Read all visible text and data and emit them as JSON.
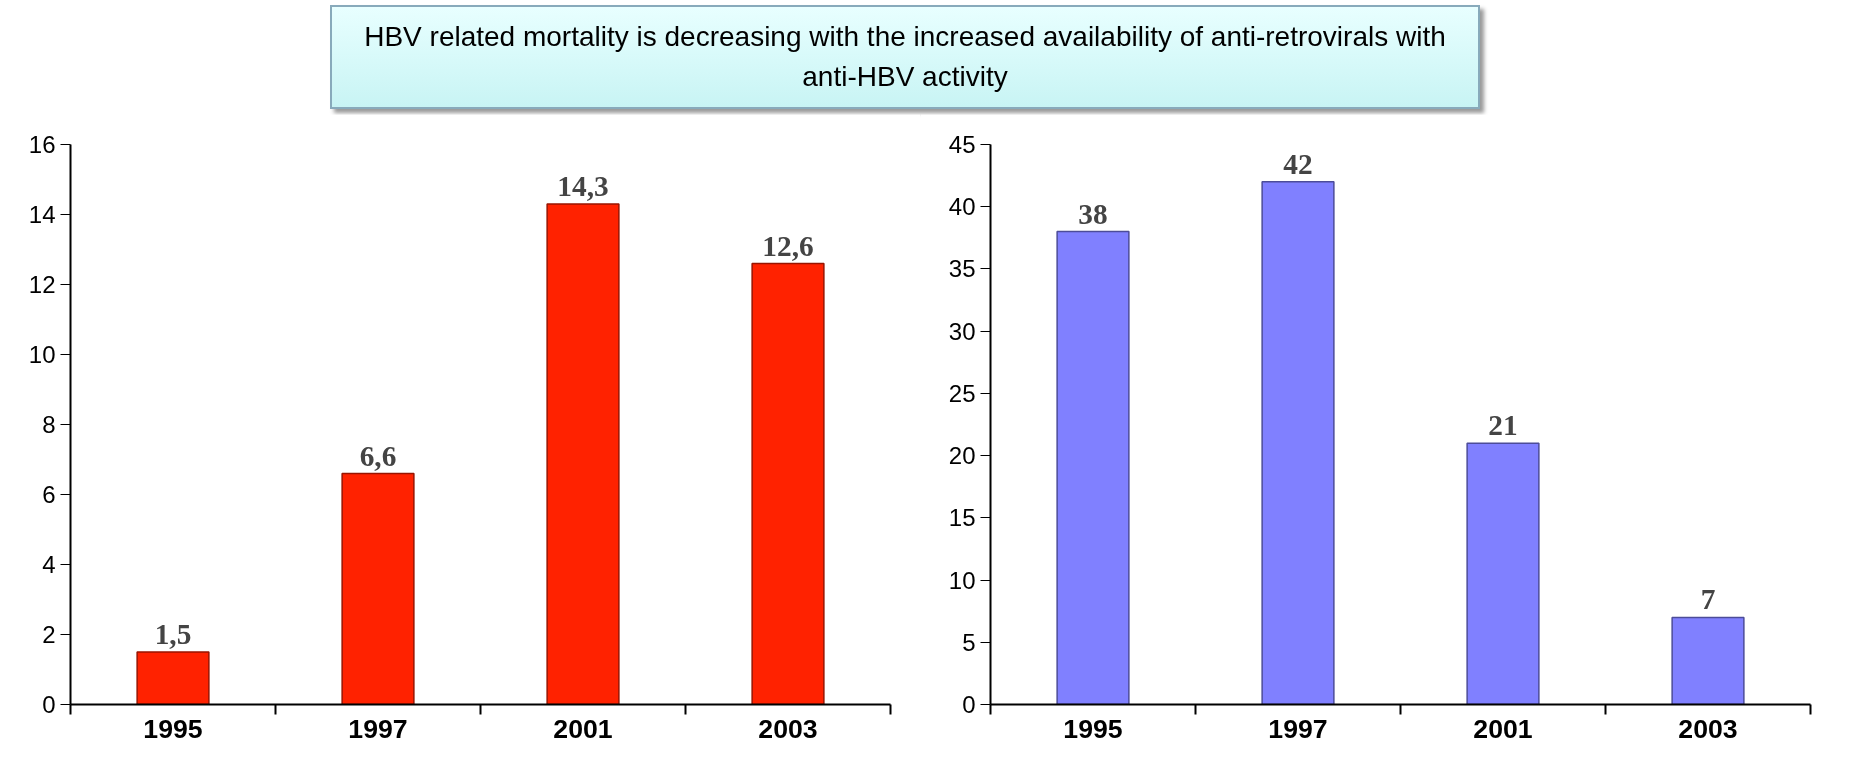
{
  "chart_data": [
    {
      "type": "bar",
      "categories": [
        "1995",
        "1997",
        "2001",
        "2003"
      ],
      "values": [
        1.5,
        6.6,
        14.3,
        12.6
      ],
      "color": "#ff2200",
      "value_labels": [
        "1,5",
        "6,6",
        "14,3",
        "12,6"
      ],
      "ylim": [
        0,
        16
      ],
      "yticks": [
        0,
        2,
        4,
        6,
        8,
        10,
        12,
        14,
        16
      ],
      "grid": false,
      "annotations": [
        "HBV related mortality is decreasing with the increased availability of anti-retrovirals with anti-HBV activity"
      ]
    },
    {
      "type": "bar",
      "categories": [
        "1995",
        "1997",
        "2001",
        "2003"
      ],
      "values": [
        38,
        42,
        21,
        7
      ],
      "color": "#8080ff",
      "value_labels": [
        "38",
        "42",
        "21",
        "7"
      ],
      "ylim": [
        0,
        45
      ],
      "yticks": [
        0,
        5,
        10,
        15,
        20,
        25,
        30,
        35,
        40,
        45
      ],
      "grid": false
    }
  ]
}
